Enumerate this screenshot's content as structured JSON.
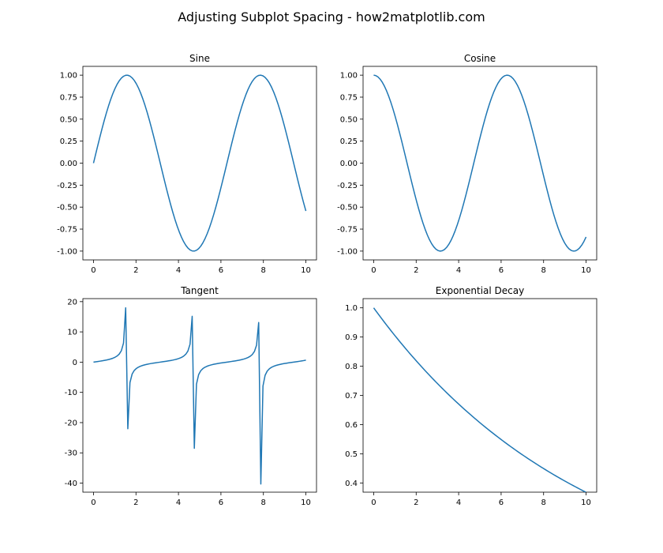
{
  "figure": {
    "title": "Adjusting Subplot Spacing - how2matplotlib.com",
    "line_color": "#1f77b4"
  },
  "chart_data": [
    {
      "type": "line",
      "title": "Sine",
      "function": "sin",
      "xlim": [
        -0.5,
        10.5
      ],
      "ylim": [
        -1.1,
        1.1
      ],
      "xticks": [
        0,
        2,
        4,
        6,
        8,
        10
      ],
      "xtick_labels": [
        "0",
        "2",
        "4",
        "6",
        "8",
        "10"
      ],
      "yticks": [
        1.0,
        0.75,
        0.5,
        0.25,
        0.0,
        -0.25,
        -0.5,
        -0.75,
        -1.0
      ],
      "ytick_labels": [
        "1.00",
        "0.75",
        "0.50",
        "0.25",
        "0.00",
        "-0.25",
        "-0.50",
        "-0.75",
        "-1.00"
      ],
      "x_range": [
        0,
        10
      ],
      "n_points": 100,
      "grid": false
    },
    {
      "type": "line",
      "title": "Cosine",
      "function": "cos",
      "xlim": [
        -0.5,
        10.5
      ],
      "ylim": [
        -1.1,
        1.1
      ],
      "xticks": [
        0,
        2,
        4,
        6,
        8,
        10
      ],
      "xtick_labels": [
        "0",
        "2",
        "4",
        "6",
        "8",
        "10"
      ],
      "yticks": [
        1.0,
        0.75,
        0.5,
        0.25,
        0.0,
        -0.25,
        -0.5,
        -0.75,
        -1.0
      ],
      "ytick_labels": [
        "1.00",
        "0.75",
        "0.50",
        "0.25",
        "0.00",
        "-0.25",
        "-0.50",
        "-0.75",
        "-1.00"
      ],
      "x_range": [
        0,
        10
      ],
      "n_points": 100,
      "grid": false
    },
    {
      "type": "line",
      "title": "Tangent",
      "function": "tan",
      "xlim": [
        -0.5,
        10.5
      ],
      "ylim": [
        -43,
        21
      ],
      "xticks": [
        0,
        2,
        4,
        6,
        8,
        10
      ],
      "xtick_labels": [
        "0",
        "2",
        "4",
        "6",
        "8",
        "10"
      ],
      "yticks": [
        20,
        10,
        0,
        -10,
        -20,
        -30,
        -40
      ],
      "ytick_labels": [
        "20",
        "10",
        "0",
        "-10",
        "-20",
        "-30",
        "-40"
      ],
      "x_range": [
        0,
        10
      ],
      "n_points": 100,
      "grid": false
    },
    {
      "type": "line",
      "title": "Exponential Decay",
      "function": "exp(-x/10)",
      "xlim": [
        -0.5,
        10.5
      ],
      "ylim": [
        0.3684,
        1.0316
      ],
      "xticks": [
        0,
        2,
        4,
        6,
        8,
        10
      ],
      "xtick_labels": [
        "0",
        "2",
        "4",
        "6",
        "8",
        "10"
      ],
      "yticks": [
        1.0,
        0.9,
        0.8,
        0.7,
        0.6,
        0.5,
        0.4
      ],
      "ytick_labels": [
        "1.0",
        "0.9",
        "0.8",
        "0.7",
        "0.6",
        "0.5",
        "0.4"
      ],
      "x_range": [
        0,
        10
      ],
      "n_points": 100,
      "grid": false
    }
  ]
}
